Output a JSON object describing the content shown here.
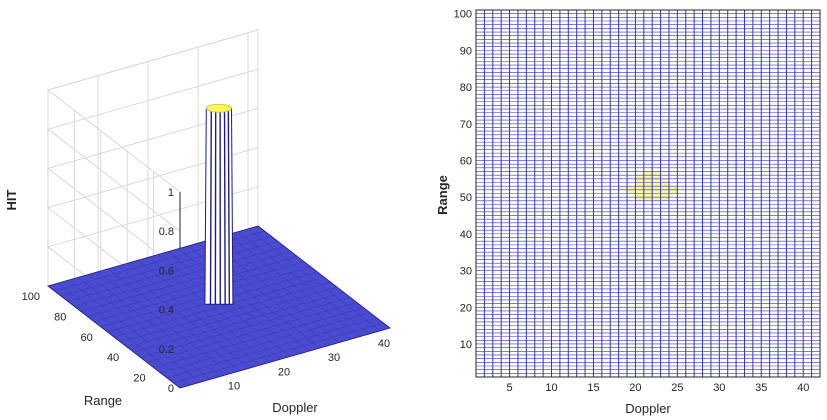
{
  "chart_data": [
    {
      "type": "surface",
      "zlabel": "HIT",
      "xlabel": "Doppler",
      "ylabel": "Range",
      "xlim": [
        0,
        42
      ],
      "ylim": [
        0,
        100
      ],
      "zlim": [
        0,
        1
      ],
      "x_ticks": [
        10,
        20,
        30,
        40
      ],
      "y_ticks": [
        20,
        40,
        60,
        80,
        100
      ],
      "z_ticks": [
        0,
        0.2,
        0.4,
        0.6,
        0.8,
        1
      ],
      "z_tick_labels": [
        "0",
        "0.2",
        "0.4",
        "0.6",
        "0.8",
        "1"
      ],
      "grid": true,
      "hit_region": {
        "doppler_range": [
          20,
          23
        ],
        "range_range": [
          48,
          56
        ],
        "value": 1
      },
      "background_value": 0,
      "colors": {
        "floor": "#4b4bd0",
        "mesh": "#1c1c8a",
        "peak": "#fbf55a",
        "grid": "#d9d9d9"
      }
    },
    {
      "type": "heatmap",
      "xlabel": "Doppler",
      "ylabel": "Range",
      "xlim": [
        1,
        42
      ],
      "ylim": [
        1,
        101
      ],
      "x_ticks": [
        5,
        10,
        15,
        20,
        25,
        30,
        35,
        40
      ],
      "y_ticks": [
        10,
        20,
        30,
        40,
        50,
        60,
        70,
        80,
        90,
        100
      ],
      "grid": true,
      "hit_cells": [
        [
          20,
          49
        ],
        [
          21,
          49
        ],
        [
          22,
          49
        ],
        [
          23,
          49
        ],
        [
          20,
          50
        ],
        [
          21,
          50
        ],
        [
          22,
          50
        ],
        [
          23,
          50
        ],
        [
          19,
          51
        ],
        [
          20,
          51
        ],
        [
          21,
          51
        ],
        [
          22,
          51
        ],
        [
          23,
          51
        ],
        [
          24,
          51
        ],
        [
          18,
          52
        ],
        [
          19,
          52
        ],
        [
          20,
          52
        ],
        [
          21,
          52
        ],
        [
          22,
          52
        ],
        [
          23,
          52
        ],
        [
          24,
          52
        ],
        [
          20,
          53
        ],
        [
          21,
          53
        ],
        [
          22,
          53
        ],
        [
          23,
          53
        ],
        [
          20,
          54
        ],
        [
          21,
          54
        ],
        [
          22,
          54
        ],
        [
          23,
          54
        ],
        [
          20,
          55
        ],
        [
          21,
          55
        ],
        [
          22,
          55
        ],
        [
          21,
          56
        ],
        [
          22,
          56
        ]
      ],
      "colors": {
        "background": "#ffffff",
        "mesh": "#3535b5",
        "hit": "#fbf7a0"
      }
    }
  ]
}
